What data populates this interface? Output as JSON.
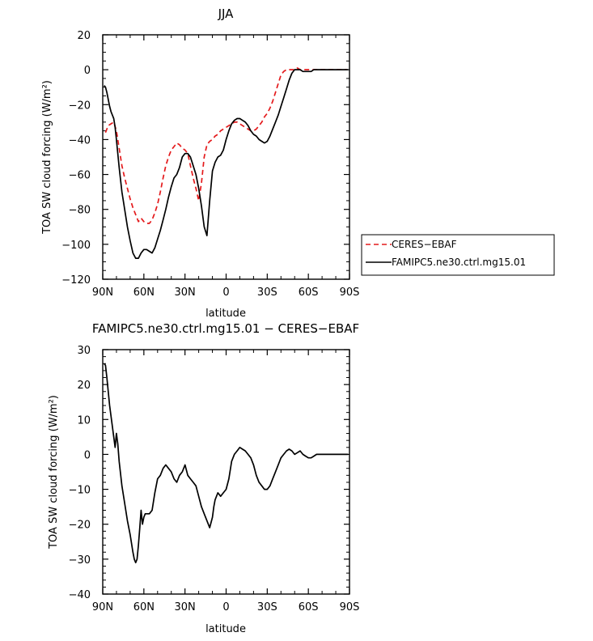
{
  "chart_data": [
    {
      "type": "line",
      "title": "JJA",
      "xlabel": "latitude",
      "ylabel": "TOA SW cloud forcing (W/m²)",
      "xlim": [
        90,
        -90
      ],
      "ylim": [
        -120,
        20
      ],
      "xticks": [
        90,
        60,
        30,
        0,
        -30,
        -60,
        -90
      ],
      "xtick_labels": [
        "90N",
        "60N",
        "30N",
        "0",
        "30S",
        "60S",
        "90S"
      ],
      "yticks": [
        20,
        0,
        -20,
        -40,
        -60,
        -80,
        -100,
        -120
      ],
      "ytick_labels": [
        "20",
        "0",
        "−20",
        "−40",
        "−60",
        "−80",
        "−100",
        "−120"
      ],
      "legend_position": "right",
      "series": [
        {
          "name": "CERES−EBAF",
          "color": "#e41a1c",
          "dash": "dashed",
          "x": [
            88,
            86,
            84,
            82,
            80,
            78,
            76,
            74,
            72,
            70,
            68,
            66,
            64,
            62,
            60,
            58,
            56,
            54,
            52,
            50,
            48,
            46,
            44,
            42,
            40,
            38,
            36,
            34,
            32,
            30,
            28,
            26,
            24,
            22,
            20,
            18,
            16,
            14,
            12,
            10,
            8,
            6,
            4,
            2,
            0,
            -2,
            -4,
            -6,
            -8,
            -10,
            -12,
            -14,
            -16,
            -18,
            -20,
            -22,
            -24,
            -26,
            -28,
            -30,
            -32,
            -34,
            -36,
            -38,
            -40,
            -42,
            -44,
            -46,
            -48,
            -50,
            -52,
            -54,
            -56,
            -58,
            -60,
            -62,
            -64,
            -66,
            -68,
            -70,
            -72,
            -74,
            -76,
            -78,
            -80,
            -82,
            -84,
            -86,
            -88
          ],
          "y": [
            -36,
            -32,
            -31,
            -30,
            -35,
            -45,
            -55,
            -62,
            -68,
            -74,
            -79,
            -83,
            -87,
            -85,
            -87,
            -88,
            -88,
            -86,
            -82,
            -77,
            -70,
            -62,
            -55,
            -50,
            -46,
            -44,
            -42,
            -43,
            -45,
            -46,
            -48,
            -55,
            -62,
            -68,
            -75,
            -65,
            -50,
            -43,
            -41,
            -40,
            -38,
            -37,
            -35,
            -34,
            -33,
            -32,
            -31,
            -30,
            -30,
            -31,
            -32,
            -33,
            -34,
            -35,
            -35,
            -34,
            -32,
            -30,
            -27,
            -25,
            -22,
            -18,
            -13,
            -8,
            -3,
            -1,
            0,
            0,
            0,
            0,
            1,
            0,
            0,
            0,
            0,
            0,
            0,
            0,
            0,
            0,
            0,
            0,
            0,
            0,
            0,
            0,
            0,
            0,
            0
          ]
        },
        {
          "name": "FAMIPC5.ne30.ctrl.mg15.01",
          "color": "#000000",
          "dash": "solid",
          "x": [
            89,
            88,
            87,
            86,
            85,
            84,
            83,
            82,
            81,
            80,
            79,
            78,
            77,
            76,
            74,
            72,
            70,
            68,
            66,
            64,
            62,
            60,
            58,
            56,
            54,
            52,
            50,
            48,
            46,
            44,
            42,
            40,
            38,
            36,
            34,
            32,
            30,
            28,
            26,
            24,
            22,
            20,
            18,
            16,
            14,
            12,
            10,
            8,
            6,
            4,
            2,
            0,
            -2,
            -4,
            -6,
            -8,
            -10,
            -12,
            -14,
            -16,
            -18,
            -20,
            -22,
            -24,
            -26,
            -28,
            -30,
            -32,
            -34,
            -36,
            -38,
            -40,
            -42,
            -44,
            -46,
            -48,
            -50,
            -52,
            -54,
            -56,
            -58,
            -60,
            -62,
            -64,
            -66,
            -68,
            -70,
            -72,
            -74,
            -76,
            -78,
            -80,
            -82,
            -84,
            -86,
            -88,
            -89
          ],
          "y": [
            -9,
            -10,
            -13,
            -17,
            -21,
            -24,
            -26,
            -28,
            -33,
            -40,
            -48,
            -56,
            -63,
            -70,
            -80,
            -90,
            -98,
            -105,
            -108,
            -108,
            -105,
            -103,
            -103,
            -104,
            -105,
            -102,
            -97,
            -92,
            -86,
            -80,
            -73,
            -67,
            -62,
            -60,
            -56,
            -50,
            -48,
            -48,
            -50,
            -55,
            -60,
            -68,
            -78,
            -90,
            -95,
            -75,
            -58,
            -53,
            -50,
            -49,
            -46,
            -40,
            -35,
            -31,
            -29,
            -28,
            -28,
            -29,
            -30,
            -32,
            -35,
            -37,
            -38,
            -40,
            -41,
            -42,
            -41,
            -38,
            -34,
            -30,
            -26,
            -21,
            -16,
            -11,
            -6,
            -2,
            0,
            0,
            0,
            -1,
            -1,
            -1,
            -1,
            0,
            0,
            0,
            0,
            0,
            0,
            0,
            0,
            0,
            0,
            0,
            0,
            0,
            0
          ]
        }
      ]
    },
    {
      "type": "line",
      "title": "FAMIPC5.ne30.ctrl.mg15.01  −  CERES−EBAF",
      "xlabel": "latitude",
      "ylabel": "TOA SW cloud forcing (W/m²)",
      "xlim": [
        90,
        -90
      ],
      "ylim": [
        -40,
        30
      ],
      "xticks": [
        90,
        60,
        30,
        0,
        -30,
        -60,
        -90
      ],
      "xtick_labels": [
        "90N",
        "60N",
        "30N",
        "0",
        "30S",
        "60S",
        "90S"
      ],
      "yticks": [
        30,
        20,
        10,
        0,
        -10,
        -20,
        -30,
        -40
      ],
      "ytick_labels": [
        "30",
        "20",
        "10",
        "0",
        "−10",
        "−20",
        "−30",
        "−40"
      ],
      "series": [
        {
          "color": "#000000",
          "dash": "solid",
          "x": [
            89,
            88,
            87,
            86,
            85,
            84,
            83,
            82,
            81,
            80,
            79,
            78,
            76,
            74,
            72,
            70,
            68,
            67,
            66,
            65,
            64,
            63,
            62,
            61,
            60,
            59,
            58,
            56,
            54,
            52,
            50,
            48,
            46,
            44,
            42,
            40,
            38,
            36,
            34,
            32,
            30,
            28,
            26,
            24,
            22,
            20,
            18,
            16,
            14,
            12,
            10,
            9,
            8,
            7,
            6,
            4,
            2,
            0,
            -2,
            -4,
            -6,
            -8,
            -10,
            -12,
            -14,
            -16,
            -18,
            -20,
            -22,
            -24,
            -26,
            -28,
            -30,
            -32,
            -34,
            -36,
            -38,
            -40,
            -42,
            -44,
            -46,
            -48,
            -50,
            -52,
            -54,
            -56,
            -58,
            -60,
            -62,
            -64,
            -66,
            -68,
            -70,
            -72,
            -74,
            -76,
            -78,
            -80,
            -82,
            -84,
            -86,
            -88,
            -89
          ],
          "y": [
            26,
            25.5,
            22,
            18,
            14,
            11,
            8,
            5,
            2,
            6,
            3,
            -2,
            -9,
            -14,
            -19,
            -23,
            -28,
            -30,
            -31,
            -30,
            -26,
            -21,
            -16,
            -20,
            -18,
            -17,
            -17,
            -17,
            -16,
            -11,
            -7,
            -6,
            -4,
            -3,
            -4,
            -5,
            -7,
            -8,
            -6,
            -5,
            -3,
            -6,
            -7,
            -8,
            -9,
            -12,
            -15,
            -17,
            -19,
            -21,
            -18,
            -15,
            -13,
            -12,
            -11,
            -12,
            -11,
            -10,
            -7,
            -2,
            0,
            1,
            2,
            1.5,
            1,
            0,
            -1,
            -3,
            -6,
            -8,
            -9,
            -10,
            -10,
            -9,
            -7,
            -5,
            -3,
            -1,
            0,
            1,
            1.5,
            1,
            0,
            0.5,
            1,
            0,
            -0.5,
            -1,
            -1,
            -0.5,
            0,
            0,
            0,
            0,
            0,
            0,
            0,
            0,
            0,
            0,
            0,
            0,
            0
          ]
        }
      ]
    }
  ]
}
